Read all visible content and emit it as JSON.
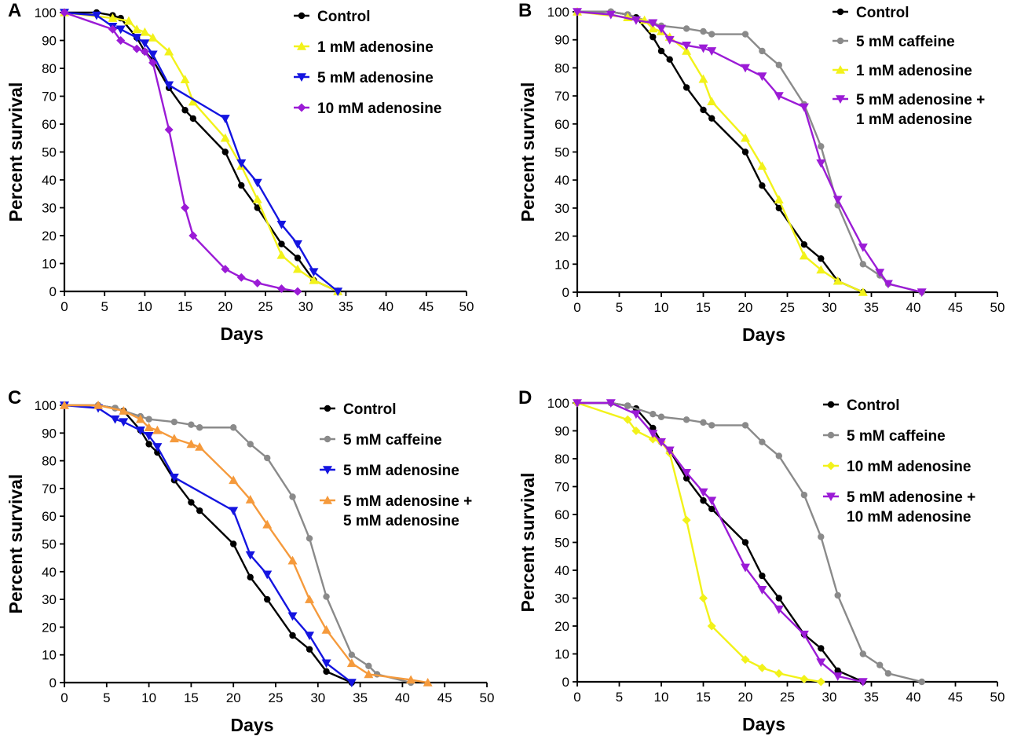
{
  "figure": {
    "panels": [
      "A",
      "B",
      "C",
      "D"
    ]
  },
  "colors": {
    "control": "#000000",
    "caffeine": "#8a8a8a",
    "yellow": "#f2f21a",
    "blue": "#1414e0",
    "purple": "#9b1bd6",
    "orange": "#f59a3c"
  },
  "chart_data": [
    {
      "panel": "A",
      "type": "line",
      "title": "",
      "xlabel": "Days",
      "ylabel": "Percent survival",
      "xlim": [
        0,
        50
      ],
      "ylim": [
        0,
        100
      ],
      "xticks": [
        0,
        5,
        10,
        15,
        20,
        25,
        30,
        35,
        40,
        45,
        50
      ],
      "yticks": [
        0,
        10,
        20,
        30,
        40,
        50,
        60,
        70,
        80,
        90,
        100
      ],
      "legend_position": "top-right",
      "series": [
        {
          "name": "Control",
          "color": "#000000",
          "marker": "circle",
          "x": [
            0,
            4,
            6,
            7,
            9,
            10,
            11,
            13,
            15,
            16,
            20,
            22,
            24,
            27,
            29,
            31,
            34
          ],
          "y": [
            100,
            100,
            99,
            98,
            91,
            86,
            83,
            73,
            65,
            62,
            50,
            38,
            30,
            17,
            12,
            4,
            0
          ]
        },
        {
          "name": "1 mM adenosine",
          "color": "#f2f21a",
          "marker": "triangle-up",
          "x": [
            0,
            6,
            8,
            9,
            10,
            11,
            13,
            15,
            16,
            20,
            22,
            24,
            27,
            29,
            31,
            34
          ],
          "y": [
            100,
            98,
            97,
            94,
            93,
            91,
            86,
            76,
            68,
            55,
            45,
            33,
            13,
            8,
            4,
            0
          ]
        },
        {
          "name": "5 mM adenosine",
          "color": "#1414e0",
          "marker": "triangle-down",
          "x": [
            0,
            4,
            6,
            7,
            9,
            10,
            11,
            13,
            20,
            22,
            24,
            27,
            29,
            31,
            34
          ],
          "y": [
            100,
            99,
            95,
            94,
            91,
            89,
            85,
            74,
            62,
            46,
            39,
            24,
            17,
            7,
            0
          ]
        },
        {
          "name": "10 mM adenosine",
          "color": "#9b1bd6",
          "marker": "diamond",
          "x": [
            0,
            6,
            7,
            9,
            10,
            11,
            13,
            15,
            16,
            20,
            22,
            24,
            27,
            29
          ],
          "y": [
            100,
            94,
            90,
            87,
            86,
            82,
            58,
            30,
            20,
            8,
            5,
            3,
            1,
            0
          ]
        }
      ]
    },
    {
      "panel": "B",
      "type": "line",
      "title": "",
      "xlabel": "Days",
      "ylabel": "Percent survival",
      "xlim": [
        0,
        50
      ],
      "ylim": [
        0,
        100
      ],
      "xticks": [
        0,
        5,
        10,
        15,
        20,
        25,
        30,
        35,
        40,
        45,
        50
      ],
      "yticks": [
        0,
        10,
        20,
        30,
        40,
        50,
        60,
        70,
        80,
        90,
        100
      ],
      "legend_position": "top-right",
      "series": [
        {
          "name": "Control",
          "color": "#000000",
          "marker": "circle",
          "x": [
            0,
            4,
            6,
            7,
            9,
            10,
            11,
            13,
            15,
            16,
            20,
            22,
            24,
            27,
            29,
            31,
            34
          ],
          "y": [
            100,
            100,
            99,
            98,
            91,
            86,
            83,
            73,
            65,
            62,
            50,
            38,
            30,
            17,
            12,
            4,
            0
          ]
        },
        {
          "name": "5 mM caffeine",
          "color": "#8a8a8a",
          "marker": "circle",
          "x": [
            0,
            4,
            6,
            9,
            10,
            13,
            15,
            16,
            20,
            22,
            24,
            27,
            29,
            31,
            34,
            36,
            37,
            41
          ],
          "y": [
            100,
            100,
            99,
            96,
            95,
            94,
            93,
            92,
            92,
            86,
            81,
            67,
            52,
            31,
            10,
            6,
            3,
            0
          ]
        },
        {
          "name": "1 mM adenosine",
          "color": "#f2f21a",
          "marker": "triangle-up",
          "x": [
            0,
            6,
            8,
            9,
            10,
            11,
            13,
            15,
            16,
            20,
            22,
            24,
            27,
            29,
            31,
            34
          ],
          "y": [
            100,
            98,
            97,
            94,
            93,
            91,
            86,
            76,
            68,
            55,
            45,
            33,
            13,
            8,
            4,
            0
          ]
        },
        {
          "name": "5 mM adenosine + 1 mM adenosine",
          "label_line1": "5 mM adenosine +",
          "label_line2": "1 mM adenosine",
          "color": "#9b1bd6",
          "marker": "triangle-down",
          "x": [
            0,
            4,
            7,
            9,
            10,
            11,
            13,
            15,
            16,
            20,
            22,
            24,
            27,
            29,
            31,
            34,
            36,
            37,
            41
          ],
          "y": [
            100,
            99,
            97,
            96,
            94,
            90,
            88,
            87,
            86,
            80,
            77,
            70,
            66,
            46,
            33,
            16,
            7,
            3,
            0
          ]
        }
      ]
    },
    {
      "panel": "C",
      "type": "line",
      "title": "",
      "xlabel": "Days",
      "ylabel": "Percent survival",
      "xlim": [
        0,
        50
      ],
      "ylim": [
        0,
        100
      ],
      "xticks": [
        0,
        5,
        10,
        15,
        20,
        25,
        30,
        35,
        40,
        45,
        50
      ],
      "yticks": [
        0,
        10,
        20,
        30,
        40,
        50,
        60,
        70,
        80,
        90,
        100
      ],
      "legend_position": "top-right",
      "series": [
        {
          "name": "Control",
          "color": "#000000",
          "marker": "circle",
          "x": [
            0,
            4,
            6,
            7,
            9,
            10,
            11,
            13,
            15,
            16,
            20,
            22,
            24,
            27,
            29,
            31,
            34
          ],
          "y": [
            100,
            100,
            99,
            98,
            91,
            86,
            83,
            73,
            65,
            62,
            50,
            38,
            30,
            17,
            12,
            4,
            0
          ]
        },
        {
          "name": "5 mM caffeine",
          "color": "#8a8a8a",
          "marker": "circle",
          "x": [
            0,
            4,
            6,
            9,
            10,
            13,
            15,
            16,
            20,
            22,
            24,
            27,
            29,
            31,
            34,
            36,
            37,
            41
          ],
          "y": [
            100,
            100,
            99,
            96,
            95,
            94,
            93,
            92,
            92,
            86,
            81,
            67,
            52,
            31,
            10,
            6,
            3,
            0
          ]
        },
        {
          "name": "5 mM adenosine",
          "color": "#1414e0",
          "marker": "triangle-down",
          "x": [
            0,
            4,
            6,
            7,
            9,
            10,
            11,
            13,
            20,
            22,
            24,
            27,
            29,
            31,
            34
          ],
          "y": [
            100,
            99,
            95,
            94,
            91,
            89,
            85,
            74,
            62,
            46,
            39,
            24,
            17,
            7,
            0
          ]
        },
        {
          "name": "5 mM adenosine + 5 mM adenosine",
          "label_line1": "5 mM adenosine +",
          "label_line2": "5 mM adenosine",
          "color": "#f59a3c",
          "marker": "triangle-up",
          "x": [
            0,
            4,
            7,
            9,
            10,
            11,
            13,
            15,
            16,
            20,
            22,
            24,
            27,
            29,
            31,
            34,
            36,
            41,
            43
          ],
          "y": [
            100,
            100,
            98,
            95,
            92,
            91,
            88,
            86,
            85,
            73,
            66,
            57,
            44,
            30,
            19,
            7,
            3,
            1,
            0
          ]
        }
      ]
    },
    {
      "panel": "D",
      "type": "line",
      "title": "",
      "xlabel": "Days",
      "ylabel": "Percent survival",
      "xlim": [
        0,
        50
      ],
      "ylim": [
        0,
        100
      ],
      "xticks": [
        0,
        5,
        10,
        15,
        20,
        25,
        30,
        35,
        40,
        45,
        50
      ],
      "yticks": [
        0,
        10,
        20,
        30,
        40,
        50,
        60,
        70,
        80,
        90,
        100
      ],
      "legend_position": "top-right",
      "series": [
        {
          "name": "Control",
          "color": "#000000",
          "marker": "circle",
          "x": [
            0,
            4,
            6,
            7,
            9,
            10,
            11,
            13,
            15,
            16,
            20,
            22,
            24,
            27,
            29,
            31,
            34
          ],
          "y": [
            100,
            100,
            99,
            98,
            91,
            86,
            83,
            73,
            65,
            62,
            50,
            38,
            30,
            17,
            12,
            4,
            0
          ]
        },
        {
          "name": "5 mM caffeine",
          "color": "#8a8a8a",
          "marker": "circle",
          "x": [
            0,
            4,
            6,
            9,
            10,
            13,
            15,
            16,
            20,
            22,
            24,
            27,
            29,
            31,
            34,
            36,
            37,
            41
          ],
          "y": [
            100,
            100,
            99,
            96,
            95,
            94,
            93,
            92,
            92,
            86,
            81,
            67,
            52,
            31,
            10,
            6,
            3,
            0
          ]
        },
        {
          "name": "10 mM adenosine",
          "color": "#f2f21a",
          "marker": "diamond",
          "x": [
            0,
            6,
            7,
            9,
            10,
            11,
            13,
            15,
            16,
            20,
            22,
            24,
            27,
            29
          ],
          "y": [
            100,
            94,
            90,
            87,
            86,
            82,
            58,
            30,
            20,
            8,
            5,
            3,
            1,
            0
          ]
        },
        {
          "name": "5 mM adenosine + 10 mM adenosine",
          "label_line1": "5 mM adenosine +",
          "label_line2": "10 mM adenosine",
          "color": "#9b1bd6",
          "marker": "triangle-down",
          "x": [
            0,
            4,
            7,
            9,
            10,
            11,
            13,
            15,
            16,
            20,
            22,
            24,
            27,
            29,
            31,
            34
          ],
          "y": [
            100,
            100,
            96,
            89,
            86,
            83,
            75,
            68,
            65,
            41,
            33,
            26,
            17,
            7,
            2,
            0
          ]
        }
      ]
    }
  ]
}
